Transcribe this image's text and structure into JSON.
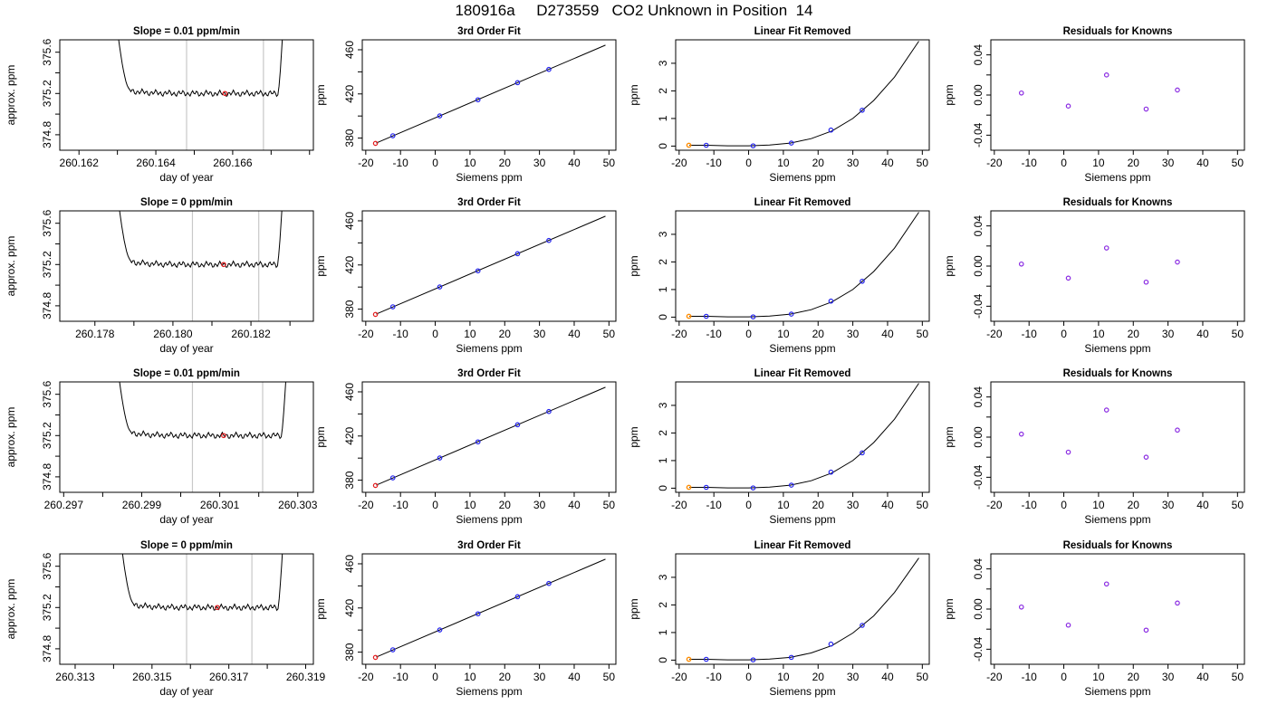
{
  "main_title": "180916a     D273559   CO2 Unknown in Position  14",
  "colors": {
    "axis": "#000000",
    "trace": "#000000",
    "window_line": "#c8c8c8",
    "red_point": "#e41a1c",
    "blue_point": "#2222ee",
    "purple_point": "#8a2be2",
    "orange_point": "#ff8c00"
  },
  "chart_data": [
    {
      "type": "line",
      "panel": "trace",
      "title": "Slope =  0.01  ppm/min",
      "xlabel": "day of year",
      "ylabel": "approx. ppm",
      "xlim": [
        260.1615,
        260.1681
      ],
      "ylim": [
        374.65,
        375.72
      ],
      "xticks": [
        260.162,
        260.163,
        260.164,
        260.165,
        260.166,
        260.167,
        260.168
      ],
      "xtick_labels": [
        "260.162",
        "",
        "260.164",
        "",
        "260.166",
        "",
        ""
      ],
      "yticks": [
        374.8,
        375.0,
        375.2,
        375.4,
        375.6
      ],
      "ytick_labels": [
        "374.8",
        "",
        "375.2",
        "",
        "375.6"
      ],
      "vlines": [
        260.1648,
        260.1668
      ],
      "trace": {
        "x_start": 260.1629,
        "x_end": 260.1674,
        "level": 375.2,
        "rise_start": 260.1633,
        "rise_end": 260.1672
      },
      "point": {
        "x": 260.1658,
        "y": 375.2
      }
    },
    {
      "type": "scatter",
      "panel": "fit",
      "title": "3rd Order Fit",
      "xlabel": "Siemens ppm",
      "ylabel": "ppm",
      "xlim": [
        -21,
        52
      ],
      "ylim": [
        369,
        469
      ],
      "xticks": [
        -20,
        -10,
        0,
        10,
        20,
        30,
        40,
        50
      ],
      "xtick_labels": [
        "-20",
        "-10",
        "0",
        "10",
        "20",
        "30",
        "40",
        "50"
      ],
      "yticks": [
        380,
        400,
        420,
        440,
        460
      ],
      "ytick_labels": [
        "380",
        "",
        "420",
        "",
        "460"
      ],
      "line": {
        "x": [
          -17,
          49
        ],
        "y": [
          375.5,
          464.2
        ]
      },
      "known_points": {
        "x": [
          -12.2,
          1.3,
          12.3,
          23.7,
          32.7
        ],
        "y": [
          382.1,
          400.1,
          414.7,
          430.2,
          442.2
        ]
      },
      "unknown_point": {
        "x": -17.2,
        "y": 375.2
      }
    },
    {
      "type": "scatter",
      "panel": "linfit",
      "title": "Linear Fit Removed",
      "xlabel": "Siemens ppm",
      "ylabel": "ppm",
      "xlim": [
        -21,
        52
      ],
      "ylim": [
        -0.15,
        3.85
      ],
      "xticks": [
        -20,
        -10,
        0,
        10,
        20,
        30,
        40,
        50
      ],
      "xtick_labels": [
        "-20",
        "-10",
        "0",
        "10",
        "20",
        "30",
        "40",
        "50"
      ],
      "yticks": [
        0,
        1,
        2,
        3
      ],
      "ytick_labels": [
        "0",
        "1",
        "2",
        "3"
      ],
      "curve": {
        "x": [
          -17,
          -12,
          -6,
          0,
          6,
          12,
          18,
          24,
          30,
          36,
          42,
          49
        ],
        "y": [
          0.03,
          0.03,
          0.01,
          0.01,
          0.04,
          0.11,
          0.27,
          0.55,
          1.0,
          1.65,
          2.5,
          3.8
        ]
      },
      "known_points": {
        "x": [
          -12.2,
          1.3,
          12.3,
          23.7,
          32.7
        ],
        "y": [
          0.03,
          0.01,
          0.11,
          0.58,
          1.3
        ]
      },
      "unknown_point": {
        "x": -17.2,
        "y": 0.03
      }
    },
    {
      "type": "scatter",
      "panel": "resid",
      "title": "Residuals for Knowns",
      "xlabel": "Siemens ppm",
      "ylabel": "ppm",
      "xlim": [
        -21,
        52
      ],
      "ylim": [
        -0.055,
        0.055
      ],
      "xticks": [
        -20,
        -10,
        0,
        10,
        20,
        30,
        40,
        50
      ],
      "xtick_labels": [
        "-20",
        "-10",
        "0",
        "10",
        "20",
        "30",
        "40",
        "50"
      ],
      "yticks": [
        -0.04,
        -0.02,
        0,
        0.02,
        0.04
      ],
      "ytick_labels": [
        "-0.04",
        "",
        "0.00",
        "",
        "0.04"
      ],
      "known_points": {
        "x": [
          -12.2,
          1.3,
          12.3,
          23.7,
          32.7
        ],
        "y": [
          0.002,
          -0.011,
          0.02,
          -0.014,
          0.005
        ]
      }
    },
    {
      "type": "line",
      "panel": "trace",
      "title": "Slope =  0  ppm/min",
      "xlabel": "day of year",
      "ylabel": "approx. ppm",
      "xlim": [
        260.1771,
        260.1836
      ],
      "ylim": [
        374.65,
        375.72
      ],
      "xticks": [
        260.177,
        260.178,
        260.179,
        260.18,
        260.181,
        260.182,
        260.183
      ],
      "xtick_labels": [
        "",
        "260.178",
        "",
        "260.180",
        "",
        "260.182",
        ""
      ],
      "yticks": [
        374.8,
        375.0,
        375.2,
        375.4,
        375.6
      ],
      "ytick_labels": [
        "374.8",
        "",
        "375.2",
        "",
        "375.6"
      ],
      "vlines": [
        260.1805,
        260.1822
      ],
      "trace": {
        "x_start": 260.1785,
        "x_end": 260.1829,
        "level": 375.2,
        "rise_start": 260.1789,
        "rise_end": 260.1827
      },
      "point": {
        "x": 260.1813,
        "y": 375.2
      }
    },
    {
      "type": "scatter",
      "panel": "fit",
      "title": "3rd Order Fit",
      "xlabel": "Siemens ppm",
      "ylabel": "ppm",
      "xlim": [
        -21,
        52
      ],
      "ylim": [
        369,
        469
      ],
      "xticks": [
        -20,
        -10,
        0,
        10,
        20,
        30,
        40,
        50
      ],
      "xtick_labels": [
        "-20",
        "-10",
        "0",
        "10",
        "20",
        "30",
        "40",
        "50"
      ],
      "yticks": [
        380,
        400,
        420,
        440,
        460
      ],
      "ytick_labels": [
        "380",
        "",
        "420",
        "",
        "460"
      ],
      "line": {
        "x": [
          -17,
          49
        ],
        "y": [
          375.5,
          464.2
        ]
      },
      "known_points": {
        "x": [
          -12.2,
          1.3,
          12.3,
          23.7,
          32.7
        ],
        "y": [
          382.1,
          400.1,
          414.7,
          430.2,
          442.2
        ]
      },
      "unknown_point": {
        "x": -17.2,
        "y": 375.2
      }
    },
    {
      "type": "scatter",
      "panel": "linfit",
      "title": "Linear Fit Removed",
      "xlabel": "Siemens ppm",
      "ylabel": "ppm",
      "xlim": [
        -21,
        52
      ],
      "ylim": [
        -0.15,
        3.85
      ],
      "xticks": [
        -20,
        -10,
        0,
        10,
        20,
        30,
        40,
        50
      ],
      "xtick_labels": [
        "-20",
        "-10",
        "0",
        "10",
        "20",
        "30",
        "40",
        "50"
      ],
      "yticks": [
        0,
        1,
        2,
        3
      ],
      "ytick_labels": [
        "0",
        "1",
        "2",
        "3"
      ],
      "curve": {
        "x": [
          -17,
          -12,
          -6,
          0,
          6,
          12,
          18,
          24,
          30,
          36,
          42,
          49
        ],
        "y": [
          0.03,
          0.03,
          0.01,
          0.01,
          0.04,
          0.11,
          0.27,
          0.55,
          1.0,
          1.65,
          2.5,
          3.8
        ]
      },
      "known_points": {
        "x": [
          -12.2,
          1.3,
          12.3,
          23.7,
          32.7
        ],
        "y": [
          0.03,
          0.01,
          0.11,
          0.58,
          1.3
        ]
      },
      "unknown_point": {
        "x": -17.2,
        "y": 0.03
      }
    },
    {
      "type": "scatter",
      "panel": "resid",
      "title": "Residuals for Knowns",
      "xlabel": "Siemens ppm",
      "ylabel": "ppm",
      "xlim": [
        -21,
        52
      ],
      "ylim": [
        -0.055,
        0.055
      ],
      "xticks": [
        -20,
        -10,
        0,
        10,
        20,
        30,
        40,
        50
      ],
      "xtick_labels": [
        "-20",
        "-10",
        "0",
        "10",
        "20",
        "30",
        "40",
        "50"
      ],
      "yticks": [
        -0.04,
        -0.02,
        0,
        0.02,
        0.04
      ],
      "ytick_labels": [
        "-0.04",
        "",
        "0.00",
        "",
        "0.04"
      ],
      "known_points": {
        "x": [
          -12.2,
          1.3,
          12.3,
          23.7,
          32.7
        ],
        "y": [
          0.002,
          -0.012,
          0.018,
          -0.016,
          0.004
        ]
      }
    },
    {
      "type": "line",
      "panel": "trace",
      "title": "Slope =  0.01  ppm/min",
      "xlabel": "day of year",
      "ylabel": "approx. ppm",
      "xlim": [
        260.2969,
        260.3034
      ],
      "ylim": [
        374.65,
        375.72
      ],
      "xticks": [
        260.297,
        260.298,
        260.299,
        260.3,
        260.301,
        260.302,
        260.303
      ],
      "xtick_labels": [
        "260.297",
        "",
        "260.299",
        "",
        "260.301",
        "",
        "260.303"
      ],
      "vlines": [
        260.3003,
        260.3021
      ],
      "yticks": [
        374.8,
        375.0,
        375.2,
        375.4,
        375.6
      ],
      "ytick_labels": [
        "374.8",
        "",
        "375.2",
        "",
        "375.6"
      ],
      "trace": {
        "x_start": 260.2983,
        "x_end": 260.3028,
        "level": 375.2,
        "rise_start": 260.2987,
        "rise_end": 260.3026
      },
      "point": {
        "x": 260.3011,
        "y": 375.2
      }
    },
    {
      "type": "scatter",
      "panel": "fit",
      "title": "3rd Order Fit",
      "xlabel": "Siemens ppm",
      "ylabel": "ppm",
      "xlim": [
        -21,
        52
      ],
      "ylim": [
        369,
        469
      ],
      "xticks": [
        -20,
        -10,
        0,
        10,
        20,
        30,
        40,
        50
      ],
      "xtick_labels": [
        "-20",
        "-10",
        "0",
        "10",
        "20",
        "30",
        "40",
        "50"
      ],
      "yticks": [
        380,
        400,
        420,
        440,
        460
      ],
      "ytick_labels": [
        "380",
        "",
        "420",
        "",
        "460"
      ],
      "line": {
        "x": [
          -17,
          49
        ],
        "y": [
          375.5,
          464.2
        ]
      },
      "known_points": {
        "x": [
          -12.2,
          1.3,
          12.3,
          23.7,
          32.7
        ],
        "y": [
          382.1,
          400.1,
          414.7,
          430.2,
          442.2
        ]
      },
      "unknown_point": {
        "x": -17.2,
        "y": 375.2
      }
    },
    {
      "type": "scatter",
      "panel": "linfit",
      "title": "Linear Fit Removed",
      "xlabel": "Siemens ppm",
      "ylabel": "ppm",
      "xlim": [
        -21,
        52
      ],
      "ylim": [
        -0.15,
        3.85
      ],
      "xticks": [
        -20,
        -10,
        0,
        10,
        20,
        30,
        40,
        50
      ],
      "xtick_labels": [
        "-20",
        "-10",
        "0",
        "10",
        "20",
        "30",
        "40",
        "50"
      ],
      "yticks": [
        0,
        1,
        2,
        3
      ],
      "ytick_labels": [
        "0",
        "1",
        "2",
        "3"
      ],
      "curve": {
        "x": [
          -17,
          -12,
          -6,
          0,
          6,
          12,
          18,
          24,
          30,
          36,
          42,
          49
        ],
        "y": [
          0.03,
          0.03,
          0.01,
          0.01,
          0.04,
          0.11,
          0.27,
          0.55,
          1.0,
          1.65,
          2.5,
          3.8
        ]
      },
      "known_points": {
        "x": [
          -12.2,
          1.3,
          12.3,
          23.7,
          32.7
        ],
        "y": [
          0.03,
          0.01,
          0.11,
          0.58,
          1.28
        ]
      },
      "unknown_point": {
        "x": -17.2,
        "y": 0.03
      }
    },
    {
      "type": "scatter",
      "panel": "resid",
      "title": "Residuals for Knowns",
      "xlabel": "Siemens ppm",
      "ylabel": "ppm",
      "xlim": [
        -21,
        52
      ],
      "ylim": [
        -0.055,
        0.055
      ],
      "xticks": [
        -20,
        -10,
        0,
        10,
        20,
        30,
        40,
        50
      ],
      "xtick_labels": [
        "-20",
        "-10",
        "0",
        "10",
        "20",
        "30",
        "40",
        "50"
      ],
      "yticks": [
        -0.04,
        -0.02,
        0,
        0.02,
        0.04
      ],
      "ytick_labels": [
        "-0.04",
        "",
        "0.00",
        "",
        "0.04"
      ],
      "known_points": {
        "x": [
          -12.2,
          1.3,
          12.3,
          23.7,
          32.7
        ],
        "y": [
          0.003,
          -0.015,
          0.027,
          -0.02,
          0.007
        ]
      }
    },
    {
      "type": "line",
      "panel": "trace",
      "title": "Slope =  0  ppm/min",
      "xlabel": "day of year",
      "ylabel": "approx. ppm",
      "xlim": [
        260.3126,
        260.3192
      ],
      "ylim": [
        374.65,
        375.72
      ],
      "xticks": [
        260.313,
        260.314,
        260.315,
        260.316,
        260.317,
        260.318,
        260.319
      ],
      "xtick_labels": [
        "260.313",
        "",
        "260.315",
        "",
        "260.317",
        "",
        "260.319"
      ],
      "yticks": [
        374.8,
        375.0,
        375.2,
        375.4,
        375.6
      ],
      "ytick_labels": [
        "374.8",
        "",
        "375.2",
        "",
        "375.6"
      ],
      "vlines": [
        260.3159,
        260.3176
      ],
      "trace": {
        "x_start": 260.3141,
        "x_end": 260.3185,
        "level": 375.2,
        "rise_start": 260.3145,
        "rise_end": 260.3183
      },
      "point": {
        "x": 260.3167,
        "y": 375.2
      }
    },
    {
      "type": "scatter",
      "panel": "fit",
      "title": "3rd Order Fit",
      "xlabel": "Siemens ppm",
      "ylabel": "ppm",
      "xlim": [
        -21,
        52
      ],
      "ylim": [
        369,
        469
      ],
      "xticks": [
        -20,
        -10,
        0,
        10,
        20,
        30,
        40,
        50
      ],
      "xtick_labels": [
        "-20",
        "-10",
        "0",
        "10",
        "20",
        "30",
        "40",
        "50"
      ],
      "yticks": [
        380,
        400,
        420,
        440,
        460
      ],
      "ytick_labels": [
        "380",
        "",
        "420",
        "",
        "460"
      ],
      "line": {
        "x": [
          -17,
          49
        ],
        "y": [
          375.5,
          464.2
        ]
      },
      "known_points": {
        "x": [
          -12.2,
          1.3,
          12.3,
          23.7,
          32.7
        ],
        "y": [
          382.1,
          400.1,
          414.7,
          430.2,
          442.2
        ]
      },
      "unknown_point": {
        "x": -17.2,
        "y": 375.2
      }
    },
    {
      "type": "scatter",
      "panel": "linfit",
      "title": "Linear Fit Removed",
      "xlabel": "Siemens ppm",
      "ylabel": "ppm",
      "xlim": [
        -21,
        52
      ],
      "ylim": [
        -0.15,
        3.85
      ],
      "xticks": [
        -20,
        -10,
        0,
        10,
        20,
        30,
        40,
        50
      ],
      "xtick_labels": [
        "-20",
        "-10",
        "0",
        "10",
        "20",
        "30",
        "40",
        "50"
      ],
      "yticks": [
        0,
        1,
        2,
        3
      ],
      "ytick_labels": [
        "0",
        "1",
        "2",
        "3"
      ],
      "curve": {
        "x": [
          -17,
          -12,
          -6,
          0,
          6,
          12,
          18,
          24,
          30,
          36,
          42,
          49
        ],
        "y": [
          0.03,
          0.03,
          0.01,
          0.01,
          0.04,
          0.1,
          0.26,
          0.53,
          0.98,
          1.6,
          2.45,
          3.7
        ]
      },
      "known_points": {
        "x": [
          -12.2,
          1.3,
          12.3,
          23.7,
          32.7
        ],
        "y": [
          0.03,
          0.01,
          0.1,
          0.58,
          1.26
        ]
      },
      "unknown_point": {
        "x": -17.2,
        "y": 0.03
      }
    },
    {
      "type": "scatter",
      "panel": "resid",
      "title": "Residuals for Knowns",
      "xlabel": "Siemens ppm",
      "ylabel": "ppm",
      "xlim": [
        -21,
        52
      ],
      "ylim": [
        -0.055,
        0.055
      ],
      "xticks": [
        -20,
        -10,
        0,
        10,
        20,
        30,
        40,
        50
      ],
      "xtick_labels": [
        "-20",
        "-10",
        "0",
        "10",
        "20",
        "30",
        "40",
        "50"
      ],
      "yticks": [
        -0.04,
        -0.02,
        0,
        0.02,
        0.04
      ],
      "ytick_labels": [
        "-0.04",
        "",
        "0.00",
        "",
        "0.04"
      ],
      "known_points": {
        "x": [
          -12.2,
          1.3,
          12.3,
          23.7,
          32.7
        ],
        "y": [
          0.002,
          -0.016,
          0.025,
          -0.021,
          0.006
        ]
      }
    }
  ]
}
